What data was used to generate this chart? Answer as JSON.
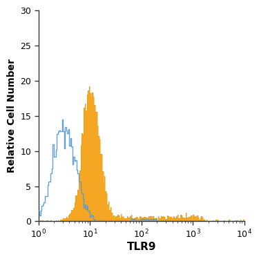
{
  "title": "",
  "xlabel": "TLR9",
  "ylabel": "Relative Cell Number",
  "xlim_log": [
    1,
    10000
  ],
  "ylim": [
    0,
    30
  ],
  "yticks": [
    0,
    5,
    10,
    15,
    20,
    25,
    30
  ],
  "background_color": "#ffffff",
  "blue_color": "#5b9bd5",
  "orange_color": "#f5a623",
  "orange_edge_color": "#e59400",
  "blue_peak_height": 14.5,
  "orange_peak_height": 19.2
}
